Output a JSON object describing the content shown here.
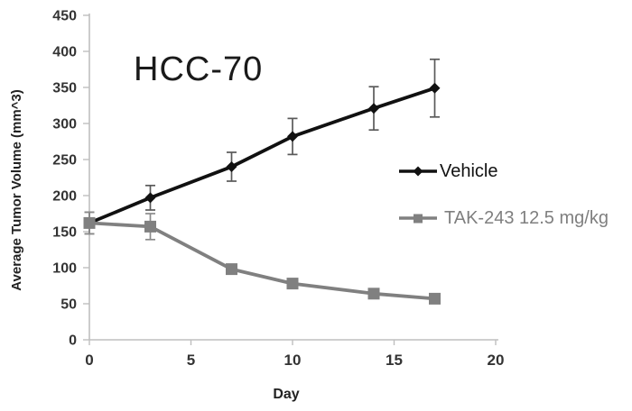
{
  "chart_data": {
    "type": "line",
    "title": "HCC-70",
    "xlabel": "Day",
    "ylabel": "Average Tumor Volume (mm^3)",
    "xlim": [
      0,
      20
    ],
    "ylim": [
      0,
      450
    ],
    "x_ticks": [
      0,
      5,
      10,
      15,
      20
    ],
    "y_ticks": [
      0,
      50,
      100,
      150,
      200,
      250,
      300,
      350,
      400,
      450
    ],
    "grid": false,
    "legend_position": "inside-right",
    "x": [
      0,
      3,
      7,
      10,
      14,
      17
    ],
    "series": [
      {
        "name": "Vehicle",
        "marker": "diamond",
        "color": "#111111",
        "label_color": "#111111",
        "error_color": "#595959",
        "values": [
          162,
          197,
          240,
          282,
          321,
          349
        ],
        "errors": [
          15,
          17,
          20,
          25,
          30,
          40
        ]
      },
      {
        "name": "TAK-243 12.5 mg/kg",
        "marker": "square",
        "color": "#808080",
        "label_color": "#7f7f7f",
        "error_color": "#8a8a8a",
        "values": [
          162,
          157,
          98,
          78,
          64,
          57
        ],
        "errors": [
          15,
          18,
          0,
          0,
          0,
          0
        ]
      }
    ],
    "axis_color": "#bfbfbf",
    "tick_label_color": "#333333"
  }
}
